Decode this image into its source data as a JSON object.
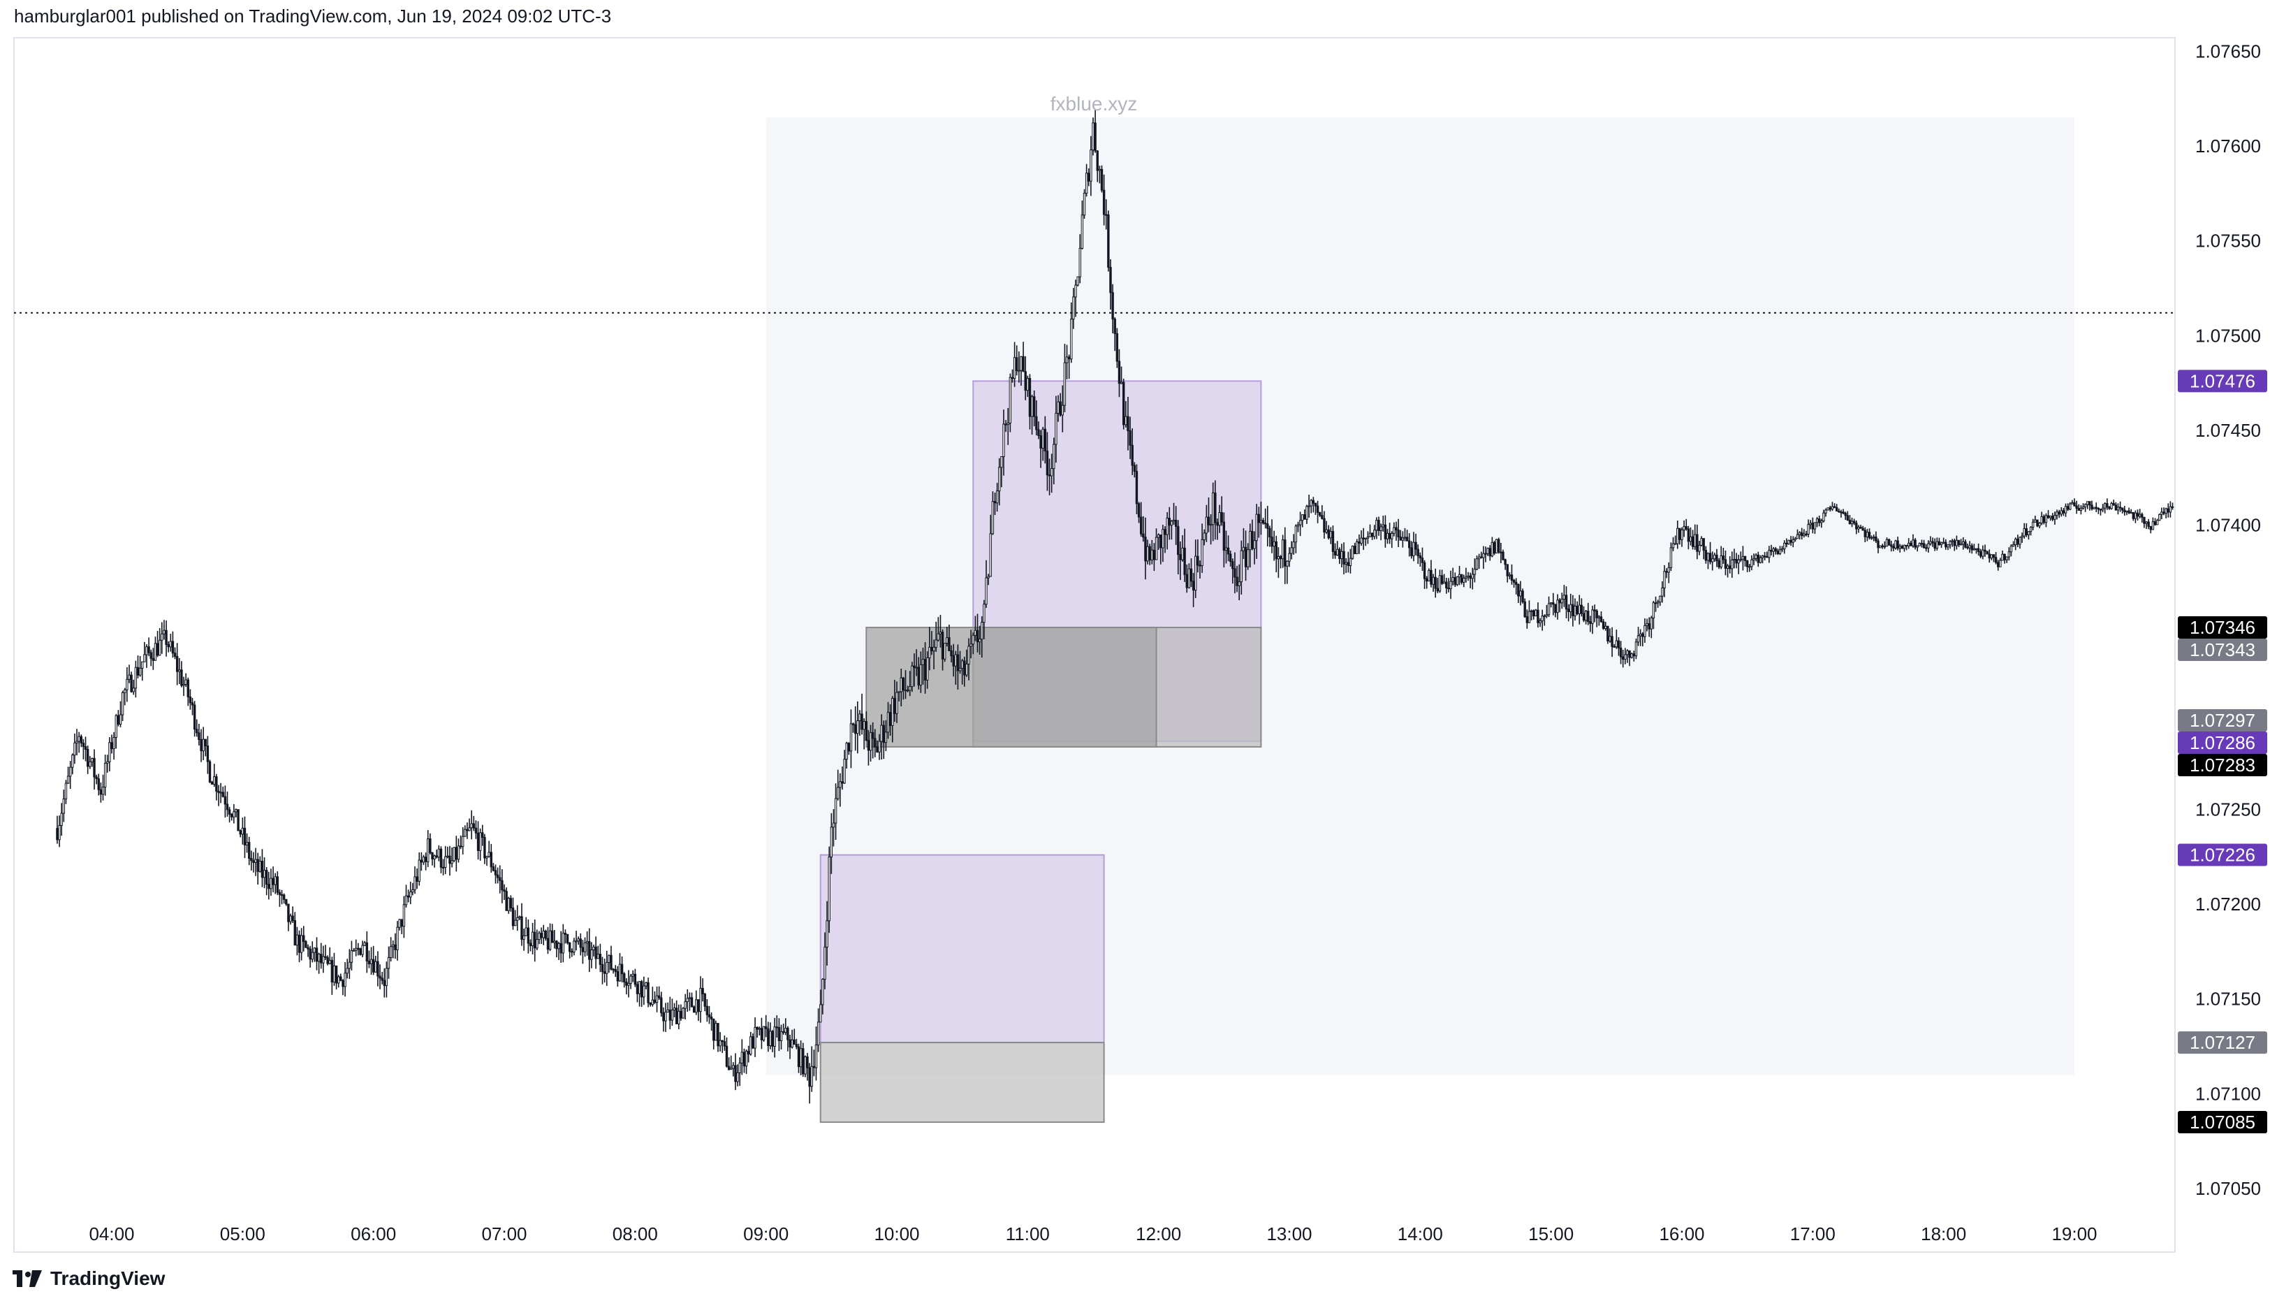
{
  "header": {
    "text": "hamburglar001 published on TradingView.com, Jun 19, 2024 09:02 UTC-3"
  },
  "footer": {
    "brand": "TradingView"
  },
  "chart_data": {
    "type": "candlestick",
    "watermark": "fxblue.xyz",
    "y_axis": {
      "ticks": [
        "1.07650",
        "1.07600",
        "1.07550",
        "1.07500",
        "1.07450",
        "1.07400",
        "1.07250",
        "1.07200",
        "1.07150",
        "1.07100",
        "1.07050"
      ],
      "ylim": [
        1.0702,
        1.0766
      ]
    },
    "x_axis": {
      "ticks": [
        "04:00",
        "05:00",
        "06:00",
        "07:00",
        "08:00",
        "09:00",
        "10:00",
        "11:00",
        "12:00",
        "13:00",
        "14:00",
        "15:00",
        "16:00",
        "17:00",
        "18:00",
        "19:00"
      ],
      "xlim": [
        "03:35",
        "19:52"
      ]
    },
    "price_tags": [
      {
        "label": "1.07476",
        "value": 1.07476,
        "color": "#673ab7"
      },
      {
        "label": "1.07346",
        "value": 1.07346,
        "color": "#000000"
      },
      {
        "label": "1.07343",
        "value": 1.07343,
        "color": "#787b86"
      },
      {
        "label": "1.07297",
        "value": 1.07297,
        "color": "#787b86"
      },
      {
        "label": "1.07286",
        "value": 1.07286,
        "color": "#673ab7"
      },
      {
        "label": "1.07283",
        "value": 1.07283,
        "color": "#000000"
      },
      {
        "label": "1.07226",
        "value": 1.07226,
        "color": "#673ab7"
      },
      {
        "label": "1.07127",
        "value": 1.07127,
        "color": "#787b86"
      },
      {
        "label": "1.07085",
        "value": 1.07085,
        "color": "#000000"
      }
    ],
    "horizontal_line": {
      "value": 1.07512,
      "style": "dotted"
    },
    "zones": [
      {
        "kind": "session",
        "from": "09:00",
        "to": "19:00",
        "low": 1.0711,
        "high": 1.07615,
        "color": "#f5f6f9"
      },
      {
        "kind": "purple",
        "from": "09:25",
        "to": "11:35",
        "low": 1.07127,
        "high": 1.07226,
        "color": "#d8cdea"
      },
      {
        "kind": "gray",
        "from": "09:25",
        "to": "11:35",
        "low": 1.07085,
        "high": 1.07127,
        "color": "#c4c4c4"
      },
      {
        "kind": "purple",
        "from": "10:35",
        "to": "12:47",
        "low": 1.07286,
        "high": 1.07476,
        "color": "#d8cdea"
      },
      {
        "kind": "gray",
        "from": "10:35",
        "to": "12:47",
        "low": 1.07283,
        "high": 1.07346,
        "color": "#bdbdbd"
      },
      {
        "kind": "gray",
        "from": "09:46",
        "to": "11:59",
        "low": 1.07283,
        "high": 1.07346,
        "color": "#a6a6a6"
      }
    ],
    "price_path": [
      [
        "03:35",
        1.0724
      ],
      [
        "03:45",
        1.0729
      ],
      [
        "03:55",
        1.0726
      ],
      [
        "04:05",
        1.0731
      ],
      [
        "04:15",
        1.0733
      ],
      [
        "04:25",
        1.0734
      ],
      [
        "04:35",
        1.0731
      ],
      [
        "04:45",
        1.0727
      ],
      [
        "04:55",
        1.0725
      ],
      [
        "05:05",
        1.0722
      ],
      [
        "05:15",
        1.0721
      ],
      [
        "05:25",
        1.0718
      ],
      [
        "05:35",
        1.0717
      ],
      [
        "05:45",
        1.0716
      ],
      [
        "05:55",
        1.0718
      ],
      [
        "06:05",
        1.0716
      ],
      [
        "06:15",
        1.072
      ],
      [
        "06:25",
        1.0723
      ],
      [
        "06:35",
        1.0722
      ],
      [
        "06:45",
        1.0724
      ],
      [
        "06:55",
        1.0722
      ],
      [
        "07:05",
        1.0719
      ],
      [
        "07:15",
        1.0718
      ],
      [
        "07:30",
        1.0718
      ],
      [
        "07:45",
        1.0717
      ],
      [
        "08:00",
        1.0716
      ],
      [
        "08:15",
        1.0714
      ],
      [
        "08:30",
        1.0715
      ],
      [
        "08:45",
        1.0711
      ],
      [
        "08:55",
        1.0713
      ],
      [
        "09:10",
        1.0713
      ],
      [
        "09:20",
        1.0711
      ],
      [
        "09:25",
        1.0714
      ],
      [
        "09:30",
        1.0724
      ],
      [
        "09:40",
        1.073
      ],
      [
        "09:50",
        1.0728
      ],
      [
        "10:00",
        1.0731
      ],
      [
        "10:10",
        1.0732
      ],
      [
        "10:20",
        1.0734
      ],
      [
        "10:30",
        1.0732
      ],
      [
        "10:40",
        1.0735
      ],
      [
        "10:45",
        1.0742
      ],
      [
        "10:55",
        1.0749
      ],
      [
        "11:05",
        1.0745
      ],
      [
        "11:10",
        1.0743
      ],
      [
        "11:20",
        1.075
      ],
      [
        "11:25",
        1.0756
      ],
      [
        "11:30",
        1.0761
      ],
      [
        "11:35",
        1.0757
      ],
      [
        "11:40",
        1.075
      ],
      [
        "11:45",
        1.0745
      ],
      [
        "11:55",
        1.0738
      ],
      [
        "12:05",
        1.074
      ],
      [
        "12:15",
        1.0737
      ],
      [
        "12:25",
        1.0741
      ],
      [
        "12:35",
        1.0737
      ],
      [
        "12:45",
        1.074
      ],
      [
        "12:55",
        1.0738
      ],
      [
        "13:10",
        1.0741
      ],
      [
        "13:25",
        1.0738
      ],
      [
        "13:40",
        1.074
      ],
      [
        "13:55",
        1.0739
      ],
      [
        "14:05",
        1.0737
      ],
      [
        "14:20",
        1.0737
      ],
      [
        "14:35",
        1.0739
      ],
      [
        "14:50",
        1.0735
      ],
      [
        "15:05",
        1.0736
      ],
      [
        "15:20",
        1.0735
      ],
      [
        "15:35",
        1.0733
      ],
      [
        "15:45",
        1.0735
      ],
      [
        "16:00",
        1.074
      ],
      [
        "16:15",
        1.0738
      ],
      [
        "16:30",
        1.0738
      ],
      [
        "16:50",
        1.0739
      ],
      [
        "17:10",
        1.0741
      ],
      [
        "17:30",
        1.0739
      ],
      [
        "17:50",
        1.0739
      ],
      [
        "18:10",
        1.0739
      ],
      [
        "18:25",
        1.0738
      ],
      [
        "18:40",
        1.074
      ],
      [
        "19:00",
        1.0741
      ],
      [
        "19:20",
        1.0741
      ],
      [
        "19:35",
        1.074
      ],
      [
        "19:45",
        1.0741
      ]
    ]
  }
}
